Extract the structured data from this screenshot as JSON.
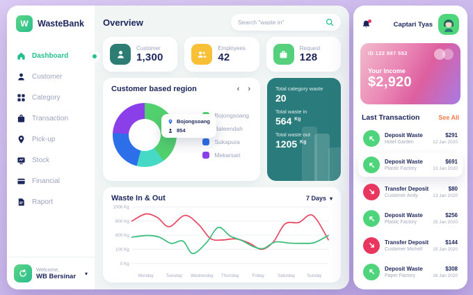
{
  "app": {
    "name": "WasteBank",
    "logo_letter": "W"
  },
  "sidebar": {
    "items": [
      {
        "label": "Dashboard",
        "icon": "home-icon",
        "active": true
      },
      {
        "label": "Customer",
        "icon": "user-icon",
        "active": false
      },
      {
        "label": "Category",
        "icon": "grid-icon",
        "active": false
      },
      {
        "label": "Transaction",
        "icon": "bag-icon",
        "active": false
      },
      {
        "label": "Pick-up",
        "icon": "pin-icon",
        "active": false
      },
      {
        "label": "Stock",
        "icon": "stock-icon",
        "active": false
      },
      {
        "label": "Financial",
        "icon": "wallet-icon",
        "active": false
      },
      {
        "label": "Raport",
        "icon": "report-icon",
        "active": false
      }
    ],
    "footer": {
      "welcome": "Welcome,",
      "name": "WB Bersinar"
    }
  },
  "header": {
    "title": "Overview",
    "search_placeholder": "Search \"waste in\""
  },
  "stats": [
    {
      "label": "Customer",
      "value": "1,300",
      "color": "#2e7d74"
    },
    {
      "label": "Employees",
      "value": "42",
      "color": "#f7c036"
    },
    {
      "label": "Request",
      "value": "128",
      "color": "#57d07d"
    }
  ],
  "region_card": {
    "title": "Customer based region",
    "tooltip": {
      "region": "Bojongsoang",
      "value": "854"
    }
  },
  "waste_summary": {
    "bg_color": "#2a7c7c",
    "rows": [
      {
        "label": "Total category waste",
        "value": "20",
        "unit": ""
      },
      {
        "label": "Total waste in",
        "value": "564",
        "unit": "Kg"
      },
      {
        "label": "Total waste out",
        "value": "1205",
        "unit": "Kg"
      }
    ]
  },
  "chart_card": {
    "title": "Waste In & Out",
    "range_label": "7 Days"
  },
  "chart_data": [
    {
      "type": "pie",
      "title": "Customer based region",
      "labels": [
        "Bojongsoang",
        "Baleendah",
        "Sukapura",
        "Mekarsari"
      ],
      "values": [
        40,
        14,
        22,
        24
      ],
      "unit": "percent",
      "colors": [
        "#53d06e",
        "#45d9c6",
        "#2d6fe8",
        "#8a3fe8"
      ],
      "highlight": {
        "label": "Bojongsoang",
        "customers": 854
      },
      "legend_position": "right"
    },
    {
      "type": "line",
      "title": "Waste In & Out",
      "range": "7 Days",
      "x_categories": [
        "Monday",
        "Tuesday",
        "Wednesday",
        "Thursday",
        "Friday",
        "Saturday",
        "Sunday"
      ],
      "y_ticks": [
        {
          "value": 1000,
          "label": "1000 Kg"
        },
        {
          "value": 800,
          "label": "800 Kg"
        },
        {
          "value": 600,
          "label": "600 Kg"
        },
        {
          "value": 100,
          "label": "100 Kg"
        },
        {
          "value": 0,
          "label": "0 Kg"
        }
      ],
      "grid": true,
      "series": [
        {
          "name": "Waste Out",
          "color": "#e84a64",
          "points": [
            [
              0,
              800
            ],
            [
              7,
              900
            ],
            [
              13,
              850
            ],
            [
              19,
              720
            ],
            [
              27,
              880
            ],
            [
              34,
              750
            ],
            [
              40,
              480
            ],
            [
              46,
              430
            ],
            [
              53,
              470
            ],
            [
              60,
              310
            ],
            [
              66,
              100
            ],
            [
              72,
              360
            ],
            [
              78,
              760
            ],
            [
              85,
              780
            ],
            [
              92,
              880
            ],
            [
              100,
              440
            ]
          ]
        },
        {
          "name": "Waste In",
          "color": "#3dbd7d",
          "points": [
            [
              0,
              530
            ],
            [
              8,
              590
            ],
            [
              14,
              530
            ],
            [
              20,
              310
            ],
            [
              26,
              390
            ],
            [
              31,
              70
            ],
            [
              38,
              340
            ],
            [
              44,
              710
            ],
            [
              50,
              570
            ],
            [
              56,
              410
            ],
            [
              62,
              190
            ],
            [
              67,
              130
            ],
            [
              73,
              360
            ],
            [
              80,
              320
            ],
            [
              87,
              310
            ],
            [
              93,
              340
            ],
            [
              100,
              590
            ]
          ]
        }
      ]
    }
  ],
  "profile": {
    "name": "Captari Tyas"
  },
  "income_card": {
    "id": "ID 122 887 552",
    "label": "Your Income",
    "amount": "$2,920"
  },
  "transactions": {
    "title": "Last Transaction",
    "see_all": "See All",
    "items": [
      {
        "type": "Deposit Waste",
        "party": "Hotel Garden",
        "amount": "$291",
        "date": "12 Jan 2020",
        "direction": "in",
        "highlight": false
      },
      {
        "type": "Deposit Waste",
        "party": "Plastic Factory",
        "amount": "$691",
        "date": "13 Jan 2020",
        "direction": "in",
        "highlight": true
      },
      {
        "type": "Transfer Deposit",
        "party": "Customer Andy",
        "amount": "$80",
        "date": "13 Jan 2020",
        "direction": "out",
        "highlight": false
      },
      {
        "type": "Deposit Waste",
        "party": "Plastic Factory",
        "amount": "$256",
        "date": "15 Jan 2020",
        "direction": "in",
        "highlight": false
      },
      {
        "type": "Transfer Deposit",
        "party": "Customer Michell",
        "amount": "$144",
        "date": "15 Jan 2020",
        "direction": "out",
        "highlight": false
      },
      {
        "type": "Deposit Waste",
        "party": "Paper Factory",
        "amount": "$308",
        "date": "16 Jan 2020",
        "direction": "in",
        "highlight": false
      }
    ]
  }
}
